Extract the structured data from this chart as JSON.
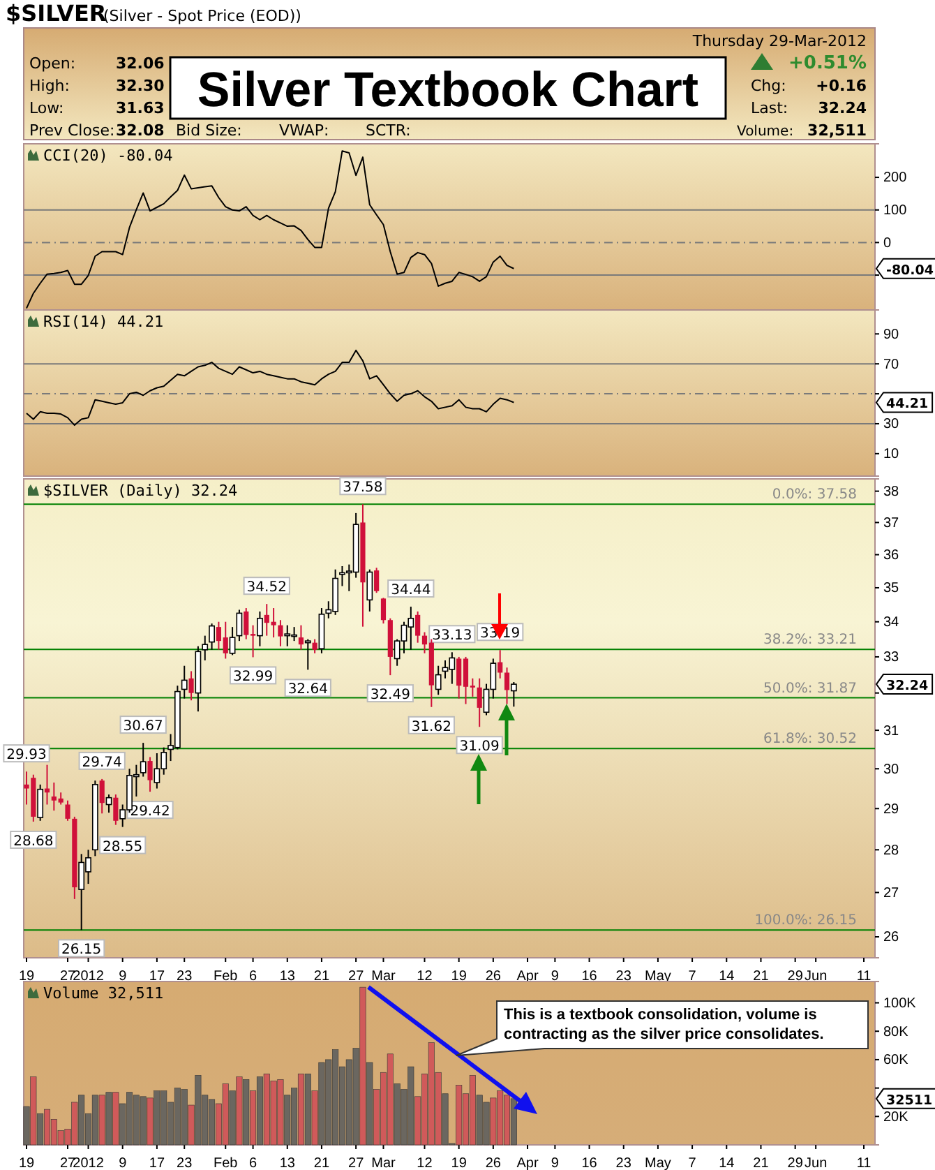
{
  "chart_data": [
    {
      "type": "other",
      "title": "Silver Textbook Chart",
      "annotations": [
        "$SILVER",
        "(Silver - Spot Price (EOD))",
        "Thursday 29-Mar-2012",
        "Open:",
        "32.06",
        "High:",
        "32.30",
        "Low:",
        "31.63",
        "Prev Close:",
        "32.08",
        "Bid Size:",
        "VWAP:",
        "SCTR:",
        "+0.51%",
        "Chg:",
        "+0.16",
        "Last:",
        "32.24",
        "Volume:",
        "32,511"
      ]
    },
    {
      "type": "line",
      "title": "CCI(20) -80.04",
      "color": "#000000",
      "tick_labels": "y",
      "ylim": [
        -207,
        303
      ],
      "yticks": [
        200,
        100,
        0,
        {
          "value": -100,
          "label": null
        }
      ],
      "categories": [
        null,
        null,
        null,
        null,
        null,
        null,
        null,
        null,
        null,
        null,
        null,
        null,
        null,
        null,
        null,
        null,
        null,
        null,
        null,
        null,
        null,
        null,
        null,
        null,
        null,
        null,
        null,
        null,
        null,
        null,
        null,
        null,
        null,
        null,
        null,
        null,
        null,
        null,
        null,
        null,
        null,
        null,
        null,
        null,
        null,
        null,
        null,
        null,
        null,
        null,
        null,
        null,
        null,
        null,
        null,
        null,
        null,
        null,
        null,
        null,
        null,
        null,
        null,
        null,
        null,
        null,
        null,
        null,
        null,
        null,
        null,
        null,
        null,
        null,
        null,
        null,
        null,
        null,
        null,
        null,
        null,
        null,
        null,
        null,
        null,
        null,
        null,
        null,
        null,
        null,
        null,
        null,
        null,
        null,
        null,
        null,
        null,
        null,
        null,
        null,
        null,
        null,
        null,
        null,
        null,
        null,
        null,
        null,
        null,
        null,
        null,
        null,
        null,
        null,
        null,
        null,
        null,
        null,
        null,
        null,
        null,
        null,
        null
      ],
      "values": [
        -202,
        -156,
        -125,
        -97,
        -95,
        -92,
        -86,
        -128,
        -128,
        -101,
        -42,
        -28,
        -28,
        -28,
        -37,
        46,
        101,
        152,
        97,
        108,
        119,
        140,
        160,
        207,
        165,
        168,
        171,
        174,
        138,
        110,
        100,
        97,
        110,
        83,
        70,
        83,
        70,
        60,
        50,
        51,
        37,
        9,
        -15,
        -15,
        105,
        156,
        281,
        275,
        206,
        262,
        116,
        85,
        55,
        -28,
        -97,
        -92,
        -46,
        -31,
        -37,
        -64,
        -134,
        -125,
        -119,
        -92,
        -98,
        -105,
        -119,
        -105,
        -60,
        -42,
        -70,
        -80.04,
        null,
        null,
        null,
        null,
        null,
        null,
        null,
        null,
        null,
        null,
        null,
        null,
        null,
        null,
        null,
        null,
        null,
        null,
        null,
        null,
        null,
        null,
        null,
        null,
        null,
        null,
        null,
        null,
        null,
        null,
        null,
        null,
        null,
        null,
        null,
        null,
        null,
        null,
        null,
        null,
        null,
        null,
        null,
        null,
        null,
        null,
        null,
        null,
        null,
        null,
        null
      ],
      "ref_lines": [
        {
          "axis": "y",
          "value": 100,
          "color": "#7a7a7a",
          "line_style": "solid"
        },
        {
          "axis": "y",
          "value": 0,
          "color": "#7a7a7a",
          "line_style": "dashed"
        },
        {
          "axis": "y",
          "value": -100,
          "color": "#7a7a7a",
          "line_style": "solid"
        }
      ],
      "annotations": [
        "-80.04"
      ]
    },
    {
      "type": "line",
      "title": "RSI(14) 44.21",
      "color": "#000000",
      "tick_labels": "y",
      "ylim": [
        -5,
        106
      ],
      "yticks": [
        90,
        70,
        {
          "value": 50,
          "label": null
        },
        30,
        10
      ],
      "categories": [
        null,
        null,
        null,
        null,
        null,
        null,
        null,
        null,
        null,
        null,
        null,
        null,
        null,
        null,
        null,
        null,
        null,
        null,
        null,
        null,
        null,
        null,
        null,
        null,
        null,
        null,
        null,
        null,
        null,
        null,
        null,
        null,
        null,
        null,
        null,
        null,
        null,
        null,
        null,
        null,
        null,
        null,
        null,
        null,
        null,
        null,
        null,
        null,
        null,
        null,
        null,
        null,
        null,
        null,
        null,
        null,
        null,
        null,
        null,
        null,
        null,
        null,
        null,
        null,
        null,
        null,
        null,
        null,
        null,
        null,
        null,
        null,
        null,
        null,
        null,
        null,
        null,
        null,
        null,
        null,
        null,
        null,
        null,
        null,
        null,
        null,
        null,
        null,
        null,
        null,
        null,
        null,
        null,
        null,
        null,
        null,
        null,
        null,
        null,
        null,
        null,
        null,
        null,
        null,
        null,
        null,
        null,
        null,
        null,
        null,
        null,
        null,
        null,
        null,
        null,
        null,
        null,
        null,
        null,
        null,
        null,
        null,
        null
      ],
      "values": [
        37,
        33,
        38,
        37,
        37,
        36.5,
        34,
        29,
        33,
        34,
        46,
        45,
        44,
        43,
        44,
        50,
        51,
        49,
        52,
        54,
        55,
        59,
        63,
        62,
        65,
        68,
        69,
        71,
        67,
        65,
        63,
        68,
        66,
        64,
        65,
        63,
        62,
        61,
        60,
        60,
        58,
        57,
        56,
        60,
        63,
        65,
        71,
        71,
        79,
        72,
        60,
        62,
        56,
        50,
        45,
        49,
        50,
        52,
        48,
        45,
        40,
        41,
        42,
        46,
        41,
        40,
        40,
        38,
        43,
        47,
        46,
        44.21,
        null,
        null,
        null,
        null,
        null,
        null,
        null,
        null,
        null,
        null,
        null,
        null,
        null,
        null,
        null,
        null,
        null,
        null,
        null,
        null,
        null,
        null,
        null,
        null,
        null,
        null,
        null,
        null,
        null,
        null,
        null,
        null,
        null,
        null,
        null,
        null,
        null,
        null,
        null,
        null,
        null,
        null,
        null,
        null,
        null,
        null,
        null,
        null,
        null,
        null,
        null
      ],
      "ref_lines": [
        {
          "axis": "y",
          "value": 70,
          "color": "#7a7a7a",
          "line_style": "solid"
        },
        {
          "axis": "y",
          "value": 50,
          "color": "#7a7a7a",
          "line_style": "dashed"
        },
        {
          "axis": "y",
          "value": 30,
          "color": "#7a7a7a",
          "line_style": "solid"
        }
      ],
      "annotations": [
        "44.21"
      ]
    },
    {
      "type": "candlestick",
      "title": "$SILVER (Daily) 32.24",
      "colors": [
        "#d0103a",
        "#d0103a",
        "#ffffff",
        "#d0103a",
        "#d0103a",
        "#d0103a",
        "#d0103a",
        "#d0103a",
        "#ffffff",
        "#ffffff",
        "#ffffff",
        "#d0103a",
        "#ffffff",
        "#d0103a",
        "#ffffff",
        "#ffffff",
        "#ffffff",
        "#ffffff",
        "#d0103a",
        "#ffffff",
        "#ffffff",
        "#ffffff",
        "#ffffff",
        "#ffffff",
        "#d0103a",
        "#ffffff",
        "#ffffff",
        "#ffffff",
        "#d0103a",
        "#d0103a",
        "#ffffff",
        "#ffffff",
        "#d0103a",
        "#d0103a",
        "#ffffff",
        "#d0103a",
        "#d0103a",
        "#d0103a",
        "#ffffff",
        "#ffffff",
        "#d0103a",
        "#ffffff",
        "#d0103a",
        "#ffffff",
        "#ffffff",
        "#ffffff",
        "#ffffff",
        "#ffffff",
        "#ffffff",
        "#d0103a",
        "#ffffff",
        "#d0103a",
        "#d0103a",
        "#d0103a",
        "#ffffff",
        "#ffffff",
        "#ffffff",
        "#d0103a",
        "#d0103a",
        "#d0103a",
        "#ffffff",
        "#ffffff",
        "#ffffff",
        "#d0103a",
        "#d0103a",
        "#d0103a",
        "#d0103a",
        "#ffffff",
        "#ffffff",
        "#d0103a",
        "#d0103a",
        "#ffffff",
        null,
        null,
        null,
        null,
        null,
        null,
        null,
        null,
        null,
        null,
        null,
        null,
        null,
        null,
        null,
        null,
        null,
        null,
        null,
        null,
        null,
        null,
        null,
        null,
        null,
        null,
        null,
        null,
        null,
        null,
        null,
        null,
        null,
        null,
        null,
        null,
        null,
        null,
        null,
        null,
        null,
        null,
        null,
        null,
        null,
        null,
        null,
        null,
        null,
        null,
        null
      ],
      "log": "y",
      "ylim": [
        25.54,
        38.4
      ],
      "yticks": [
        26,
        27,
        28,
        29,
        30,
        31,
        {
          "value": 32,
          "label": null
        },
        33,
        34,
        35,
        36,
        37,
        38
      ],
      "categories": [
        "19",
        null,
        null,
        null,
        null,
        null,
        "27",
        null,
        null,
        "2012",
        null,
        null,
        null,
        null,
        "9",
        null,
        null,
        null,
        null,
        "17",
        null,
        null,
        null,
        "23",
        null,
        null,
        null,
        null,
        null,
        "Feb",
        null,
        null,
        null,
        "6",
        null,
        null,
        null,
        null,
        "13",
        null,
        null,
        null,
        null,
        "21",
        null,
        null,
        null,
        null,
        "27",
        null,
        null,
        null,
        "Mar",
        null,
        null,
        null,
        null,
        null,
        "12",
        null,
        null,
        null,
        null,
        "19",
        null,
        null,
        null,
        null,
        "26",
        null,
        null,
        null,
        null,
        "Apr",
        null,
        null,
        null,
        "9",
        null,
        null,
        null,
        null,
        "16",
        null,
        null,
        null,
        null,
        "23",
        null,
        null,
        null,
        null,
        "May",
        null,
        null,
        null,
        null,
        "7",
        null,
        null,
        null,
        null,
        "14",
        null,
        null,
        null,
        null,
        "21",
        null,
        null,
        null,
        null,
        "29",
        null,
        null,
        "Jun",
        null,
        null,
        null,
        null,
        null,
        null,
        "11"
      ],
      "ohlc": [
        [
          29.6,
          29.93,
          29.1,
          29.5
        ],
        [
          29.77,
          29.85,
          28.68,
          28.8
        ],
        [
          28.78,
          29.6,
          28.7,
          29.48
        ],
        [
          29.5,
          30.1,
          29.1,
          29.4
        ],
        [
          29.3,
          29.65,
          28.95,
          29.2
        ],
        [
          29.25,
          29.4,
          29.1,
          29.15
        ],
        [
          29.1,
          29.2,
          28.7,
          28.75
        ],
        [
          28.75,
          28.8,
          26.85,
          27.12
        ],
        [
          27.07,
          27.9,
          26.15,
          27.7
        ],
        [
          27.48,
          28.0,
          27.2,
          27.81
        ],
        [
          28.0,
          29.7,
          27.85,
          29.6
        ],
        [
          29.7,
          29.74,
          28.88,
          29.14
        ],
        [
          29.1,
          29.35,
          28.9,
          29.27
        ],
        [
          29.27,
          29.35,
          28.6,
          28.7
        ],
        [
          28.75,
          29.1,
          28.55,
          28.97
        ],
        [
          28.97,
          30.0,
          28.9,
          29.83
        ],
        [
          29.8,
          30.1,
          29.3,
          29.85
        ],
        [
          29.9,
          30.67,
          29.8,
          30.18
        ],
        [
          30.2,
          30.3,
          29.42,
          29.71
        ],
        [
          29.65,
          30.4,
          29.5,
          30.0
        ],
        [
          30.0,
          30.55,
          29.85,
          30.42
        ],
        [
          30.5,
          30.9,
          30.2,
          30.6
        ],
        [
          30.55,
          32.2,
          30.5,
          32.04
        ],
        [
          32.1,
          32.75,
          31.85,
          32.35
        ],
        [
          32.4,
          32.6,
          31.8,
          32.0
        ],
        [
          32.0,
          33.3,
          31.5,
          33.15
        ],
        [
          33.2,
          33.6,
          32.9,
          33.35
        ],
        [
          33.42,
          33.95,
          33.2,
          33.88
        ],
        [
          33.85,
          34.0,
          33.2,
          33.45
        ],
        [
          33.55,
          34.0,
          32.95,
          33.1
        ],
        [
          33.1,
          33.85,
          33.05,
          33.55
        ],
        [
          33.6,
          34.35,
          33.45,
          34.25
        ],
        [
          34.3,
          34.4,
          33.5,
          33.62
        ],
        [
          33.65,
          33.9,
          32.99,
          33.6
        ],
        [
          33.6,
          34.3,
          33.3,
          34.1
        ],
        [
          34.2,
          34.52,
          33.6,
          33.97
        ],
        [
          34.0,
          34.4,
          33.55,
          33.9
        ],
        [
          33.9,
          34.05,
          33.3,
          33.58
        ],
        [
          33.6,
          33.9,
          33.3,
          33.65
        ],
        [
          33.6,
          33.85,
          33.45,
          33.62
        ],
        [
          33.55,
          33.9,
          33.2,
          33.35
        ],
        [
          33.4,
          33.5,
          32.64,
          33.45
        ],
        [
          33.4,
          33.5,
          33.1,
          33.2
        ],
        [
          33.23,
          34.4,
          33.1,
          34.22
        ],
        [
          34.25,
          34.6,
          34.1,
          34.35
        ],
        [
          34.3,
          35.55,
          34.2,
          35.28
        ],
        [
          35.4,
          35.65,
          35.05,
          35.45
        ],
        [
          35.45,
          35.7,
          34.9,
          35.5
        ],
        [
          35.47,
          37.3,
          35.3,
          36.94
        ],
        [
          37.0,
          37.58,
          33.86,
          35.16
        ],
        [
          34.64,
          35.55,
          34.3,
          35.47
        ],
        [
          35.52,
          35.6,
          34.85,
          34.9
        ],
        [
          34.68,
          34.7,
          33.95,
          34.05
        ],
        [
          34.05,
          34.1,
          32.49,
          33.0
        ],
        [
          32.95,
          33.5,
          32.75,
          33.45
        ],
        [
          33.45,
          34.0,
          33.1,
          33.9
        ],
        [
          33.85,
          34.44,
          33.2,
          34.1
        ],
        [
          34.2,
          34.3,
          33.4,
          33.6
        ],
        [
          33.6,
          33.7,
          33.1,
          33.35
        ],
        [
          33.4,
          33.5,
          31.62,
          32.21
        ],
        [
          32.1,
          32.75,
          31.95,
          32.5
        ],
        [
          32.6,
          32.9,
          32.4,
          32.7
        ],
        [
          32.65,
          33.13,
          32.25,
          32.97
        ],
        [
          32.95,
          33.0,
          31.85,
          32.2
        ],
        [
          32.95,
          33.0,
          31.7,
          32.17
        ],
        [
          32.2,
          32.4,
          31.9,
          32.15
        ],
        [
          32.15,
          32.4,
          31.09,
          31.6
        ],
        [
          31.48,
          32.25,
          31.4,
          32.1
        ],
        [
          32.1,
          32.95,
          31.85,
          32.82
        ],
        [
          32.85,
          33.19,
          32.4,
          32.56
        ],
        [
          32.56,
          32.7,
          31.7,
          32.08
        ],
        [
          32.06,
          32.3,
          31.63,
          32.24
        ],
        null,
        null,
        null,
        null,
        null,
        null,
        null,
        null,
        null,
        null,
        null,
        null,
        null,
        null,
        null,
        null,
        null,
        null,
        null,
        null,
        null,
        null,
        null,
        null,
        null,
        null,
        null,
        null,
        null,
        null,
        null,
        null,
        null,
        null,
        null,
        null,
        null,
        null,
        null,
        null,
        null,
        null,
        null,
        null,
        null,
        null,
        null,
        null,
        null,
        null,
        null
      ],
      "value_labels": [
        "29.93",
        "28.68",
        null,
        null,
        null,
        null,
        null,
        null,
        "26.15",
        null,
        null,
        "29.74",
        null,
        null,
        "28.55",
        null,
        null,
        "30.67",
        "29.42",
        null,
        null,
        null,
        null,
        null,
        null,
        null,
        null,
        null,
        null,
        null,
        null,
        null,
        null,
        "32.99",
        null,
        "34.52",
        null,
        null,
        null,
        null,
        null,
        "32.64",
        null,
        null,
        null,
        null,
        null,
        null,
        null,
        "37.58",
        null,
        null,
        null,
        "32.49",
        null,
        null,
        "34.44",
        null,
        null,
        "31.62",
        null,
        null,
        "33.13",
        null,
        null,
        null,
        "31.09",
        null,
        null,
        "33.19",
        null,
        null,
        null,
        null,
        null,
        null,
        null,
        null,
        null,
        null,
        null,
        null,
        null,
        null,
        null,
        null,
        null,
        null,
        null,
        null,
        null,
        null,
        null,
        null,
        null,
        null,
        null,
        null,
        null,
        null,
        null,
        null,
        null,
        null,
        null,
        null,
        null,
        null,
        null,
        null,
        null,
        null,
        null,
        null,
        null,
        null,
        null,
        null,
        null,
        null,
        null,
        null,
        null
      ],
      "ref_lines": [
        {
          "axis": "y",
          "value": 37.58,
          "label": "0.0%: 37.58",
          "color": "#008000"
        },
        {
          "axis": "y",
          "value": 33.21,
          "label": "38.2%: 33.21",
          "color": "#008000"
        },
        {
          "axis": "y",
          "value": 31.87,
          "label": "50.0%: 31.87",
          "color": "#008000"
        },
        {
          "axis": "y",
          "value": 30.52,
          "label": "61.8%: 30.52",
          "color": "#008000"
        },
        {
          "axis": "y",
          "value": 26.15,
          "label": "100.0%: 26.15",
          "color": "#008000"
        }
      ],
      "annotations": [
        "32.24"
      ]
    },
    {
      "type": "bar",
      "title": "Volume 32,511",
      "ylim": [
        0,
        115000
      ],
      "yticks": [
        {
          "value": 20000,
          "label": "20K"
        },
        {
          "value": 40000,
          "label": null
        },
        {
          "value": 60000,
          "label": "60K"
        },
        {
          "value": 80000,
          "label": "80K"
        },
        {
          "value": 100000,
          "label": "100K"
        }
      ],
      "categories": [
        "19",
        null,
        null,
        null,
        null,
        null,
        "27",
        null,
        null,
        "2012",
        null,
        null,
        null,
        null,
        "9",
        null,
        null,
        null,
        null,
        "17",
        null,
        null,
        null,
        "23",
        null,
        null,
        null,
        null,
        null,
        "Feb",
        null,
        null,
        null,
        "6",
        null,
        null,
        null,
        null,
        "13",
        null,
        null,
        null,
        null,
        "21",
        null,
        null,
        null,
        null,
        "27",
        null,
        null,
        null,
        "Mar",
        null,
        null,
        null,
        null,
        null,
        "12",
        null,
        null,
        null,
        null,
        "19",
        null,
        null,
        null,
        null,
        "26",
        null,
        null,
        null,
        null,
        "Apr",
        null,
        null,
        null,
        "9",
        null,
        null,
        null,
        null,
        "16",
        null,
        null,
        null,
        null,
        "23",
        null,
        null,
        null,
        null,
        "May",
        null,
        null,
        null,
        null,
        "7",
        null,
        null,
        null,
        null,
        "14",
        null,
        null,
        null,
        null,
        "21",
        null,
        null,
        null,
        null,
        "29",
        null,
        null,
        "Jun",
        null,
        null,
        null,
        null,
        null,
        null,
        "11"
      ],
      "values": [
        27000,
        48000,
        22000,
        25000,
        18000,
        10000,
        11000,
        30000,
        35000,
        22000,
        35000,
        35000,
        37000,
        37000,
        29000,
        37000,
        35000,
        34000,
        33000,
        38000,
        38000,
        30000,
        40000,
        39000,
        28000,
        49000,
        35000,
        32000,
        29000,
        43000,
        38000,
        48000,
        46000,
        38000,
        48000,
        50000,
        45000,
        46000,
        35000,
        40000,
        50000,
        50000,
        38000,
        58000,
        60000,
        67000,
        55000,
        60000,
        68000,
        111000,
        58000,
        39000,
        51000,
        64000,
        43000,
        39000,
        55000,
        34000,
        50000,
        72000,
        51000,
        36000,
        1000,
        42000,
        36000,
        49000,
        35000,
        30000,
        33000,
        38000,
        35000,
        32511,
        null,
        null,
        null,
        null,
        null,
        null,
        null,
        null,
        null,
        null,
        null,
        null,
        null,
        null,
        null,
        null,
        null,
        null,
        null,
        null,
        null,
        null,
        null,
        null,
        null,
        null,
        null,
        null,
        null,
        null,
        null,
        null,
        null,
        null,
        null,
        null,
        null,
        null,
        null,
        null,
        null,
        null,
        null,
        null,
        null,
        null,
        null,
        null,
        null,
        null,
        null
      ],
      "colors": [
        "#6b6760",
        "#d05a5a",
        "#6b6760",
        "#d05a5a",
        "#d05a5a",
        "#d05a5a",
        "#d05a5a",
        "#d05a5a",
        "#6b6760",
        "#6b6760",
        "#6b6760",
        "#d05a5a",
        "#6b6760",
        "#d05a5a",
        "#6b6760",
        "#6b6760",
        "#6b6760",
        "#6b6760",
        "#d05a5a",
        "#6b6760",
        "#6b6760",
        "#6b6760",
        "#6b6760",
        "#6b6760",
        "#d05a5a",
        "#6b6760",
        "#6b6760",
        "#6b6760",
        "#d05a5a",
        "#d05a5a",
        "#6b6760",
        "#d05a5a",
        "#6b6760",
        "#d05a5a",
        "#6b6760",
        "#d05a5a",
        "#d05a5a",
        "#d05a5a",
        "#6b6760",
        "#6b6760",
        "#d05a5a",
        "#6b6760",
        "#d05a5a",
        "#6b6760",
        "#6b6760",
        "#6b6760",
        "#6b6760",
        "#6b6760",
        "#6b6760",
        "#d05a5a",
        "#6b6760",
        "#d05a5a",
        "#d05a5a",
        "#d05a5a",
        "#6b6760",
        "#6b6760",
        "#6b6760",
        "#d05a5a",
        "#d05a5a",
        "#d05a5a",
        "#d05a5a",
        "#6b6760",
        "#6b6760",
        "#d05a5a",
        "#d05a5a",
        "#d05a5a",
        "#6b6760",
        "#6b6760",
        "#d05a5a",
        "#d05a5a",
        "#d05a5a",
        "#6b6760",
        null,
        null,
        null,
        null,
        null,
        null,
        null,
        null,
        null,
        null,
        null,
        null,
        null,
        null,
        null,
        null,
        null,
        null,
        null,
        null,
        null,
        null,
        null,
        null,
        null,
        null,
        null,
        null,
        null,
        null,
        null,
        null,
        null,
        null,
        null,
        null,
        null,
        null,
        null,
        null,
        null,
        null,
        null,
        null,
        null,
        null,
        null,
        null,
        null,
        null,
        null
      ],
      "annotations": [
        "This is a textbook consolidation, volume is contracting as the silver price consolidates.",
        "32511"
      ]
    }
  ]
}
